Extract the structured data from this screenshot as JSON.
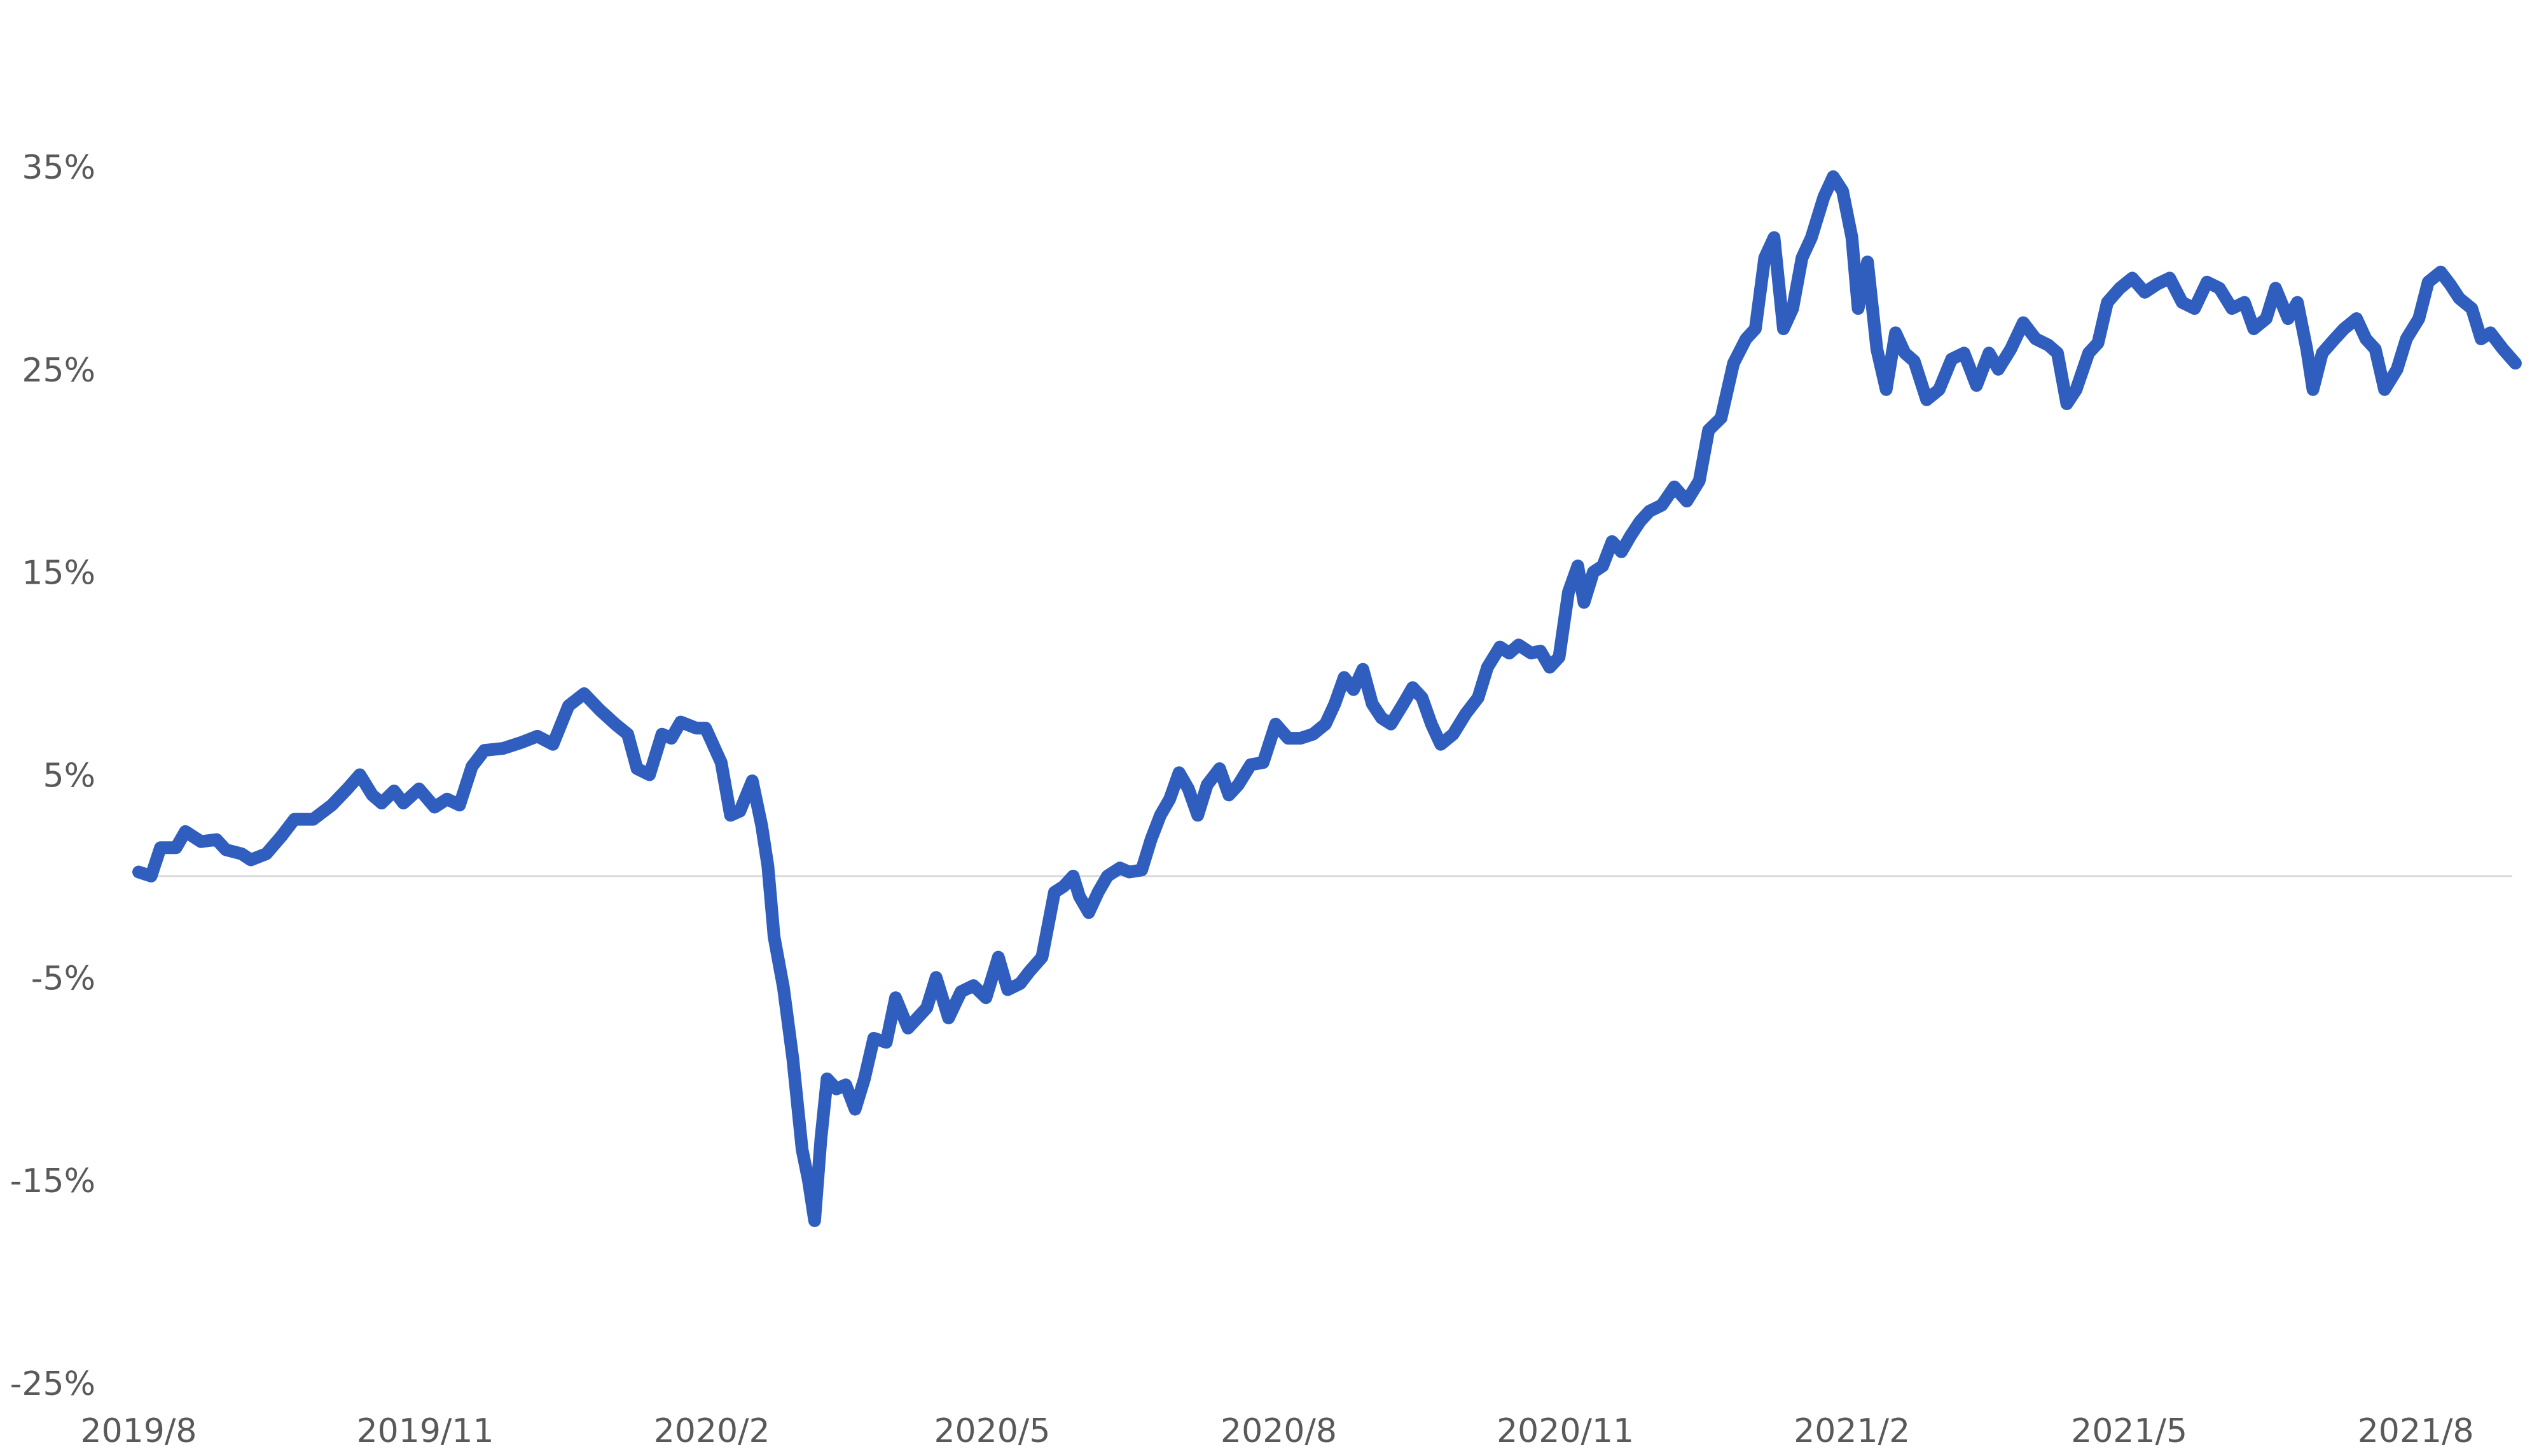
{
  "chart_data": {
    "type": "line",
    "title": "",
    "xlabel": "",
    "ylabel": "",
    "ylim": [
      -25,
      40
    ],
    "xlim": [
      "2019/8",
      "2021/9"
    ],
    "x_ticks": [
      "2019/8",
      "2019/11",
      "2020/2",
      "2020/5",
      "2020/8",
      "2020/11",
      "2021/2",
      "2021/5",
      "2021/8"
    ],
    "y_ticks": [
      "35%",
      "25%",
      "15%",
      "5%",
      "-5%",
      "-15%",
      "-25%"
    ],
    "y_tick_values": [
      35,
      25,
      15,
      5,
      -5,
      -15,
      -25
    ],
    "grid": false,
    "zero_line": true,
    "legend": "none",
    "colors": {
      "line": "#2f5ebf",
      "zero_line": "#d9d9d9",
      "tick_text": "#595959"
    },
    "series": [
      {
        "points": [
          [
            "2019-08-01",
            0.2
          ],
          [
            "2019-08-05",
            0.0
          ],
          [
            "2019-08-08",
            1.4
          ],
          [
            "2019-08-13",
            1.4
          ],
          [
            "2019-08-16",
            2.2
          ],
          [
            "2019-08-21",
            1.7
          ],
          [
            "2019-08-26",
            1.8
          ],
          [
            "2019-08-29",
            1.3
          ],
          [
            "2019-09-03",
            1.1
          ],
          [
            "2019-09-06",
            0.8
          ],
          [
            "2019-09-11",
            1.1
          ],
          [
            "2019-09-16",
            2.0
          ],
          [
            "2019-09-20",
            2.8
          ],
          [
            "2019-09-26",
            2.8
          ],
          [
            "2019-10-02",
            3.5
          ],
          [
            "2019-10-07",
            4.3
          ],
          [
            "2019-10-11",
            5.0
          ],
          [
            "2019-10-15",
            4.0
          ],
          [
            "2019-10-18",
            3.6
          ],
          [
            "2019-10-22",
            4.2
          ],
          [
            "2019-10-25",
            3.6
          ],
          [
            "2019-10-30",
            4.3
          ],
          [
            "2019-11-04",
            3.4
          ],
          [
            "2019-11-08",
            3.8
          ],
          [
            "2019-11-12",
            3.5
          ],
          [
            "2019-11-16",
            5.4
          ],
          [
            "2019-11-20",
            6.2
          ],
          [
            "2019-11-26",
            6.3
          ],
          [
            "2019-12-02",
            6.6
          ],
          [
            "2019-12-07",
            6.9
          ],
          [
            "2019-12-12",
            6.5
          ],
          [
            "2019-12-17",
            8.4
          ],
          [
            "2019-12-22",
            9.0
          ],
          [
            "2019-12-27",
            8.2
          ],
          [
            "2020-01-01",
            7.5
          ],
          [
            "2020-01-05",
            7.0
          ],
          [
            "2020-01-08",
            5.3
          ],
          [
            "2020-01-12",
            5.0
          ],
          [
            "2020-01-16",
            7.0
          ],
          [
            "2020-01-19",
            6.8
          ],
          [
            "2020-01-22",
            7.6
          ],
          [
            "2020-01-27",
            7.3
          ],
          [
            "2020-01-30",
            7.3
          ],
          [
            "2020-02-04",
            5.6
          ],
          [
            "2020-02-07",
            3.0
          ],
          [
            "2020-02-10",
            3.2
          ],
          [
            "2020-02-14",
            4.7
          ],
          [
            "2020-02-17",
            2.5
          ],
          [
            "2020-02-19",
            0.5
          ],
          [
            "2020-02-21",
            -3.0
          ],
          [
            "2020-02-24",
            -5.5
          ],
          [
            "2020-02-27",
            -9.0
          ],
          [
            "2020-03-01",
            -13.5
          ],
          [
            "2020-03-03",
            -15.0
          ],
          [
            "2020-03-05",
            -17.0
          ],
          [
            "2020-03-07",
            -13.0
          ],
          [
            "2020-03-09",
            -10.0
          ],
          [
            "2020-03-12",
            -10.5
          ],
          [
            "2020-03-15",
            -10.3
          ],
          [
            "2020-03-18",
            -11.5
          ],
          [
            "2020-03-21",
            -10.0
          ],
          [
            "2020-03-24",
            -8.0
          ],
          [
            "2020-03-28",
            -8.2
          ],
          [
            "2020-03-31",
            -6.0
          ],
          [
            "2020-04-04",
            -7.5
          ],
          [
            "2020-04-07",
            -7.0
          ],
          [
            "2020-04-10",
            -6.5
          ],
          [
            "2020-04-13",
            -5.0
          ],
          [
            "2020-04-17",
            -7.0
          ],
          [
            "2020-04-21",
            -5.7
          ],
          [
            "2020-04-25",
            -5.4
          ],
          [
            "2020-04-29",
            -6.0
          ],
          [
            "2020-05-03",
            -4.0
          ],
          [
            "2020-05-06",
            -5.6
          ],
          [
            "2020-05-10",
            -5.3
          ],
          [
            "2020-05-13",
            -4.7
          ],
          [
            "2020-05-17",
            -4.0
          ],
          [
            "2020-05-21",
            -0.8
          ],
          [
            "2020-05-24",
            -0.5
          ],
          [
            "2020-05-27",
            0.0
          ],
          [
            "2020-05-29",
            -1.0
          ],
          [
            "2020-06-01",
            -1.8
          ],
          [
            "2020-06-04",
            -0.8
          ],
          [
            "2020-06-07",
            0.0
          ],
          [
            "2020-06-11",
            0.4
          ],
          [
            "2020-06-14",
            0.2
          ],
          [
            "2020-06-18",
            0.3
          ],
          [
            "2020-06-21",
            1.8
          ],
          [
            "2020-06-24",
            3.0
          ],
          [
            "2020-06-27",
            3.8
          ],
          [
            "2020-06-30",
            5.1
          ],
          [
            "2020-07-03",
            4.3
          ],
          [
            "2020-07-06",
            3.0
          ],
          [
            "2020-07-09",
            4.5
          ],
          [
            "2020-07-13",
            5.3
          ],
          [
            "2020-07-16",
            4.0
          ],
          [
            "2020-07-19",
            4.5
          ],
          [
            "2020-07-23",
            5.5
          ],
          [
            "2020-07-27",
            5.6
          ],
          [
            "2020-07-31",
            7.5
          ],
          [
            "2020-08-04",
            6.8
          ],
          [
            "2020-08-08",
            6.8
          ],
          [
            "2020-08-12",
            7.0
          ],
          [
            "2020-08-16",
            7.5
          ],
          [
            "2020-08-19",
            8.5
          ],
          [
            "2020-08-22",
            9.8
          ],
          [
            "2020-08-25",
            9.2
          ],
          [
            "2020-08-28",
            10.2
          ],
          [
            "2020-08-31",
            8.5
          ],
          [
            "2020-09-03",
            7.8
          ],
          [
            "2020-09-06",
            7.5
          ],
          [
            "2020-09-10",
            8.5
          ],
          [
            "2020-09-13",
            9.3
          ],
          [
            "2020-09-16",
            8.8
          ],
          [
            "2020-09-19",
            7.5
          ],
          [
            "2020-09-22",
            6.5
          ],
          [
            "2020-09-26",
            7.0
          ],
          [
            "2020-09-30",
            8.0
          ],
          [
            "2020-10-04",
            8.8
          ],
          [
            "2020-10-07",
            10.3
          ],
          [
            "2020-10-11",
            11.3
          ],
          [
            "2020-10-14",
            11.0
          ],
          [
            "2020-10-17",
            11.4
          ],
          [
            "2020-10-21",
            11.0
          ],
          [
            "2020-10-24",
            11.1
          ],
          [
            "2020-10-27",
            10.3
          ],
          [
            "2020-10-30",
            10.8
          ],
          [
            "2020-11-02",
            14.0
          ],
          [
            "2020-11-05",
            15.3
          ],
          [
            "2020-11-07",
            13.5
          ],
          [
            "2020-11-10",
            15.0
          ],
          [
            "2020-11-13",
            15.3
          ],
          [
            "2020-11-16",
            16.5
          ],
          [
            "2020-11-19",
            16.0
          ],
          [
            "2020-11-22",
            16.8
          ],
          [
            "2020-11-25",
            17.5
          ],
          [
            "2020-11-28",
            18.0
          ],
          [
            "2020-12-02",
            18.3
          ],
          [
            "2020-12-06",
            19.2
          ],
          [
            "2020-12-10",
            18.5
          ],
          [
            "2020-12-14",
            19.5
          ],
          [
            "2020-12-17",
            22.0
          ],
          [
            "2020-12-21",
            22.6
          ],
          [
            "2020-12-25",
            25.3
          ],
          [
            "2020-12-29",
            26.5
          ],
          [
            "2021-01-01",
            27.0
          ],
          [
            "2021-01-04",
            30.5
          ],
          [
            "2021-01-07",
            31.5
          ],
          [
            "2021-01-10",
            27.0
          ],
          [
            "2021-01-13",
            28.0
          ],
          [
            "2021-01-16",
            30.5
          ],
          [
            "2021-01-19",
            31.5
          ],
          [
            "2021-01-23",
            33.5
          ],
          [
            "2021-01-26",
            34.5
          ],
          [
            "2021-01-29",
            33.8
          ],
          [
            "2021-02-01",
            31.5
          ],
          [
            "2021-02-03",
            28.0
          ],
          [
            "2021-02-06",
            30.3
          ],
          [
            "2021-02-09",
            26.0
          ],
          [
            "2021-02-12",
            24.0
          ],
          [
            "2021-02-15",
            26.8
          ],
          [
            "2021-02-18",
            25.8
          ],
          [
            "2021-02-21",
            25.4
          ],
          [
            "2021-02-25",
            23.5
          ],
          [
            "2021-03-01",
            24.0
          ],
          [
            "2021-03-05",
            25.5
          ],
          [
            "2021-03-09",
            25.8
          ],
          [
            "2021-03-13",
            24.2
          ],
          [
            "2021-03-17",
            25.8
          ],
          [
            "2021-03-20",
            25.0
          ],
          [
            "2021-03-24",
            26.0
          ],
          [
            "2021-03-28",
            27.3
          ],
          [
            "2021-04-01",
            26.5
          ],
          [
            "2021-04-05",
            26.2
          ],
          [
            "2021-04-08",
            25.8
          ],
          [
            "2021-04-11",
            23.3
          ],
          [
            "2021-04-14",
            24.0
          ],
          [
            "2021-04-18",
            25.8
          ],
          [
            "2021-04-21",
            26.3
          ],
          [
            "2021-04-24",
            28.3
          ],
          [
            "2021-04-28",
            29.0
          ],
          [
            "2021-05-02",
            29.5
          ],
          [
            "2021-05-06",
            28.8
          ],
          [
            "2021-05-10",
            29.2
          ],
          [
            "2021-05-14",
            29.5
          ],
          [
            "2021-05-18",
            28.3
          ],
          [
            "2021-05-22",
            28.0
          ],
          [
            "2021-05-26",
            29.3
          ],
          [
            "2021-05-30",
            29.0
          ],
          [
            "2021-06-03",
            28.0
          ],
          [
            "2021-06-07",
            28.3
          ],
          [
            "2021-06-10",
            27.0
          ],
          [
            "2021-06-14",
            27.5
          ],
          [
            "2021-06-17",
            29.0
          ],
          [
            "2021-06-21",
            27.5
          ],
          [
            "2021-06-24",
            28.3
          ],
          [
            "2021-06-27",
            26.0
          ],
          [
            "2021-06-29",
            24.0
          ],
          [
            "2021-07-02",
            25.8
          ],
          [
            "2021-07-06",
            26.5
          ],
          [
            "2021-07-09",
            27.0
          ],
          [
            "2021-07-13",
            27.5
          ],
          [
            "2021-07-16",
            26.5
          ],
          [
            "2021-07-19",
            26.0
          ],
          [
            "2021-07-22",
            24.0
          ],
          [
            "2021-07-26",
            25.0
          ],
          [
            "2021-07-29",
            26.5
          ],
          [
            "2021-08-02",
            27.5
          ],
          [
            "2021-08-05",
            29.3
          ],
          [
            "2021-08-09",
            29.8
          ],
          [
            "2021-08-12",
            29.2
          ],
          [
            "2021-08-15",
            28.5
          ],
          [
            "2021-08-19",
            28.0
          ],
          [
            "2021-08-22",
            26.5
          ],
          [
            "2021-08-25",
            26.8
          ],
          [
            "2021-08-29",
            26.0
          ],
          [
            "2021-09-02",
            25.3
          ]
        ]
      }
    ]
  }
}
